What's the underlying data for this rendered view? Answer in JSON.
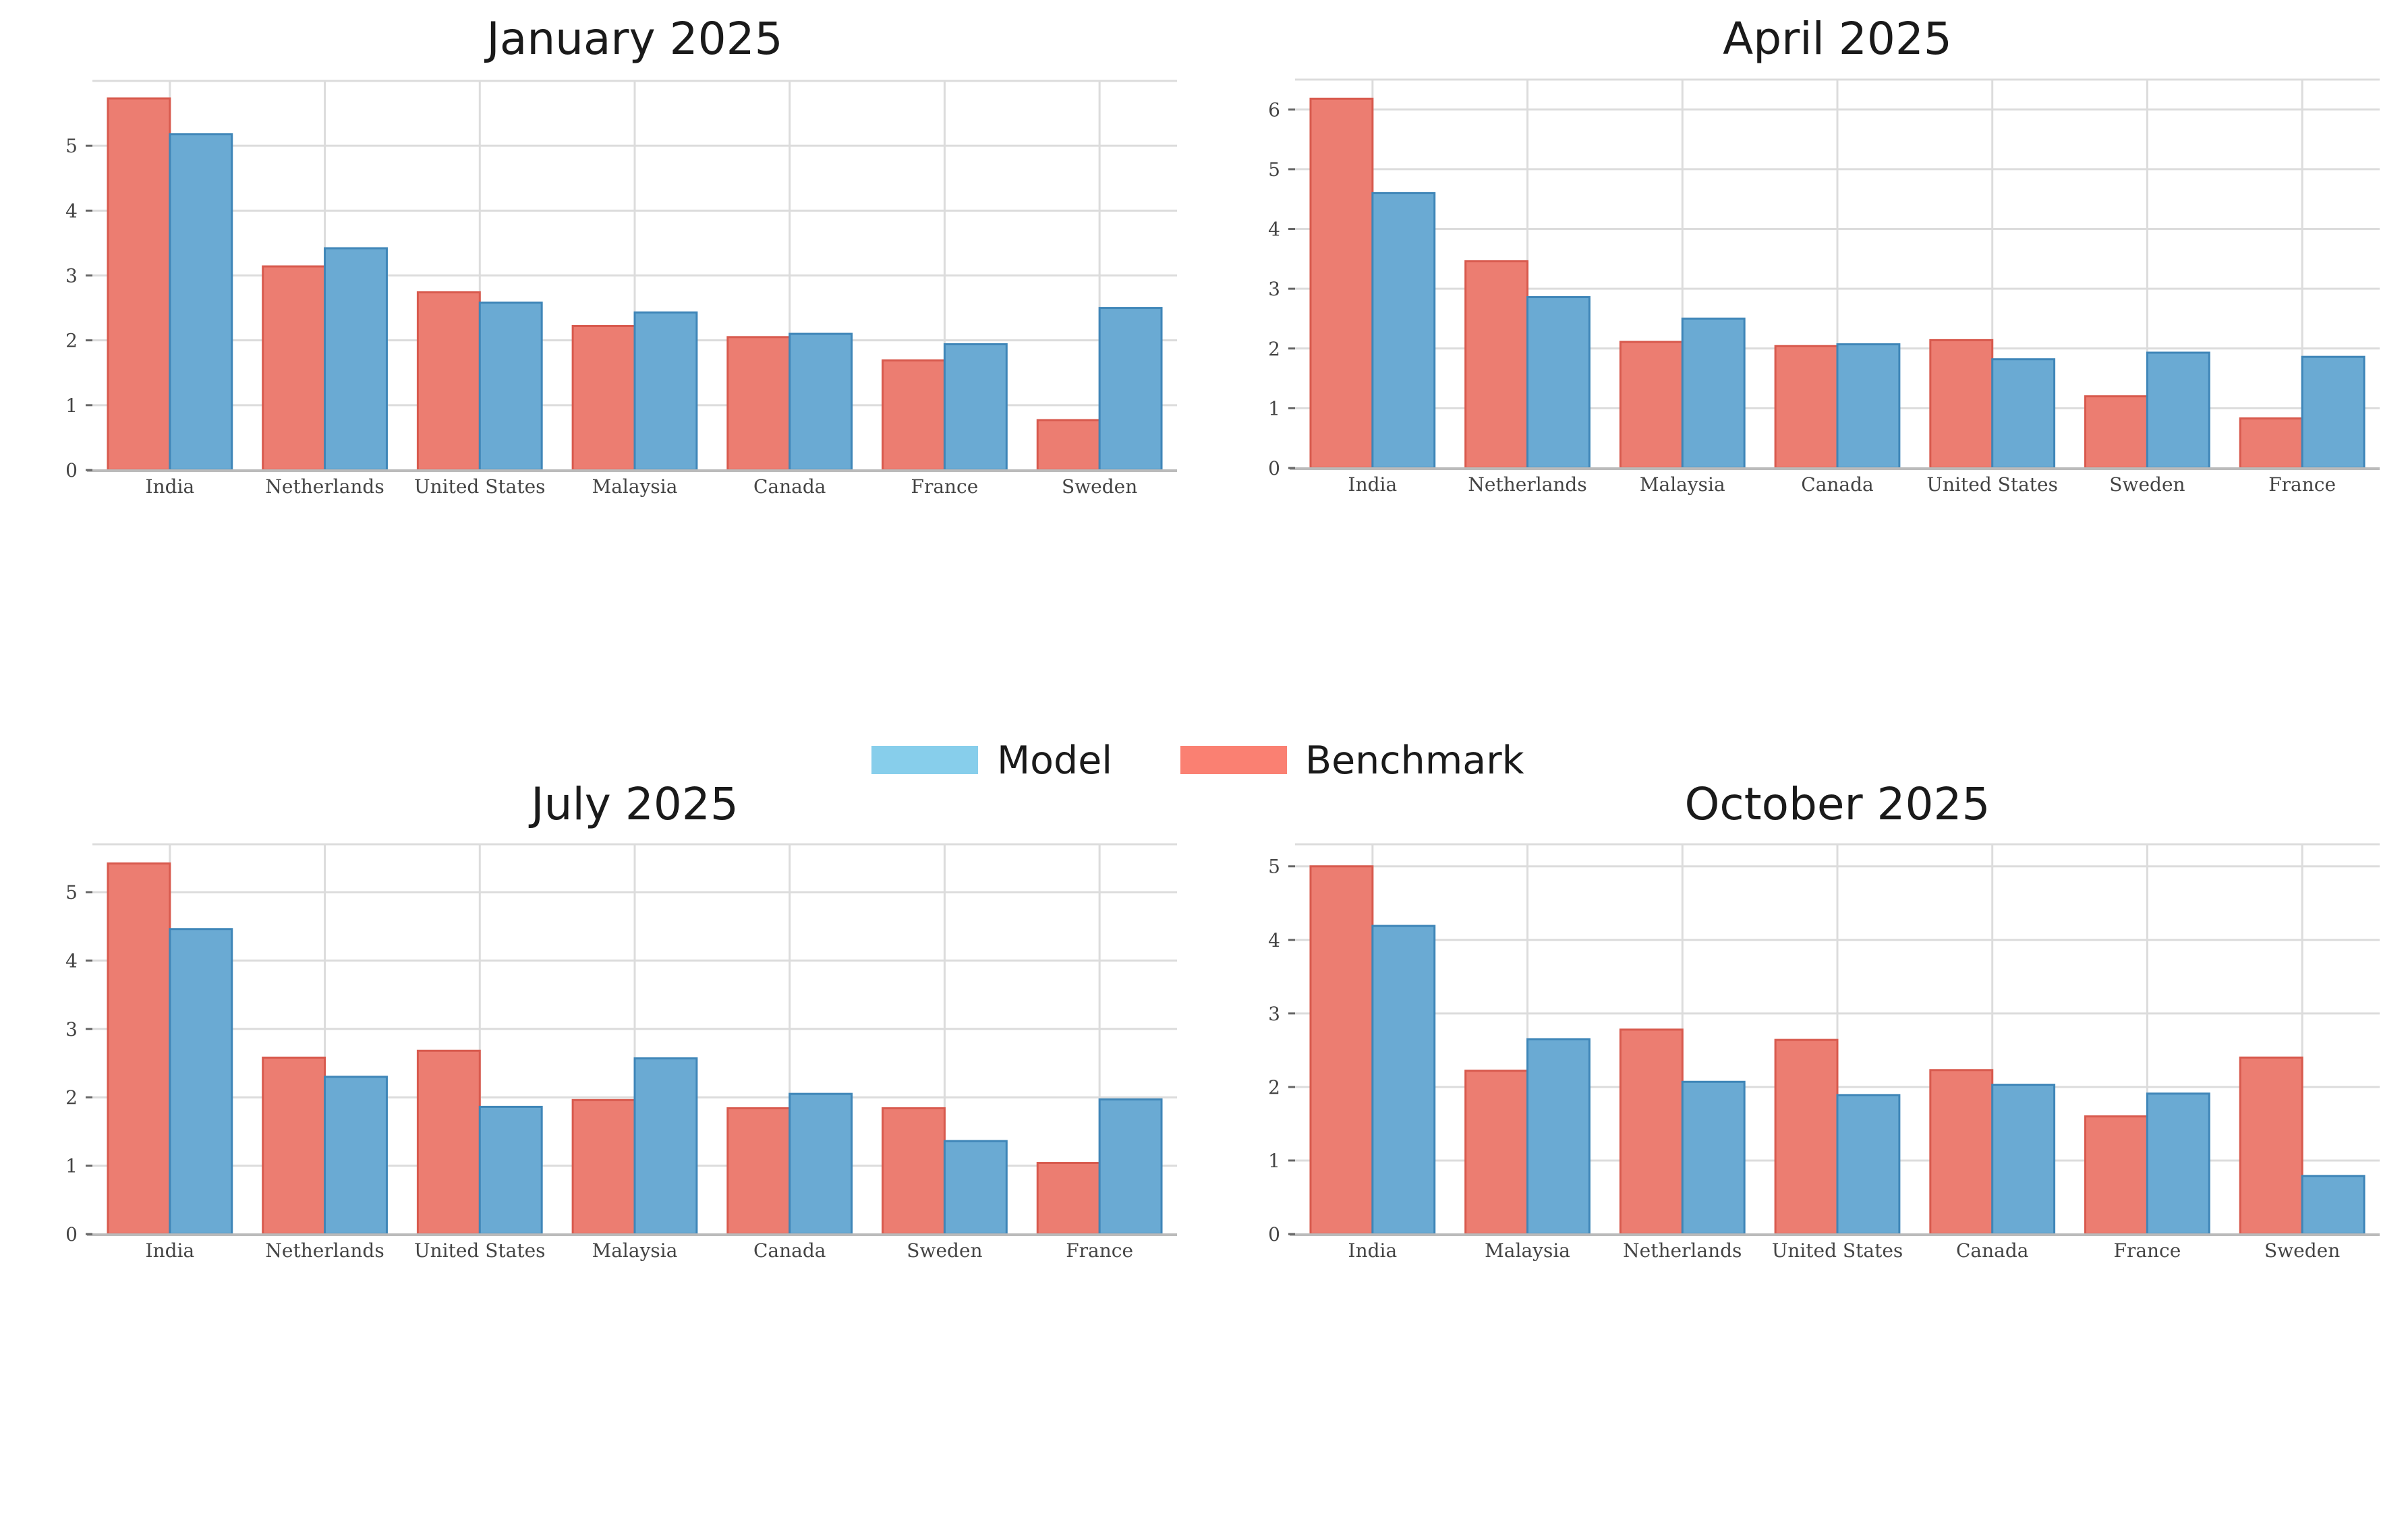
{
  "colors": {
    "model": "#6aaad3",
    "model_edge": "#3f86b8",
    "benchmark": "#ec7d71",
    "benchmark_edge": "#d85a4e",
    "grid": "#dcdcdc",
    "axis": "#bbbbbb",
    "legend_model": "#87ceeb",
    "legend_benchmark": "#fa8072"
  },
  "legend": {
    "placement": "center",
    "items": [
      {
        "label": "Model",
        "color": "#87ceeb"
      },
      {
        "label": "Benchmark",
        "color": "#fa8072"
      }
    ]
  },
  "chart_data": [
    {
      "type": "bar",
      "title": "January 2025",
      "categories": [
        "India",
        "Netherlands",
        "United States",
        "Malaysia",
        "Canada",
        "France",
        "Sweden"
      ],
      "series": [
        {
          "name": "Benchmark",
          "values": [
            5.73,
            3.14,
            2.74,
            2.22,
            2.05,
            1.69,
            0.77
          ]
        },
        {
          "name": "Model",
          "values": [
            5.18,
            3.42,
            2.58,
            2.43,
            2.1,
            1.94,
            2.5
          ]
        }
      ],
      "ylim": [
        0,
        6
      ],
      "yticks": [
        0,
        1,
        2,
        3,
        4,
        5
      ],
      "grid": true
    },
    {
      "type": "bar",
      "title": "April 2025",
      "categories": [
        "India",
        "Netherlands",
        "Malaysia",
        "Canada",
        "United States",
        "Sweden",
        "France"
      ],
      "series": [
        {
          "name": "Benchmark",
          "values": [
            6.18,
            3.46,
            2.11,
            2.04,
            2.14,
            1.2,
            0.83
          ]
        },
        {
          "name": "Model",
          "values": [
            4.6,
            2.86,
            2.5,
            2.07,
            1.82,
            1.93,
            1.86
          ]
        }
      ],
      "ylim": [
        0,
        6.5
      ],
      "yticks": [
        0,
        1,
        2,
        3,
        4,
        5,
        6
      ],
      "grid": true
    },
    {
      "type": "bar",
      "title": "July 2025",
      "categories": [
        "India",
        "Netherlands",
        "United States",
        "Malaysia",
        "Canada",
        "Sweden",
        "France"
      ],
      "series": [
        {
          "name": "Benchmark",
          "values": [
            5.42,
            2.58,
            2.68,
            1.96,
            1.84,
            1.84,
            1.04
          ]
        },
        {
          "name": "Model",
          "values": [
            4.46,
            2.3,
            1.86,
            2.57,
            2.05,
            1.36,
            1.97
          ]
        }
      ],
      "ylim": [
        0,
        5.7
      ],
      "yticks": [
        0,
        1,
        2,
        3,
        4,
        5
      ],
      "grid": true
    },
    {
      "type": "bar",
      "title": "October 2025",
      "categories": [
        "India",
        "Malaysia",
        "Netherlands",
        "United States",
        "Canada",
        "France",
        "Sweden"
      ],
      "series": [
        {
          "name": "Benchmark",
          "values": [
            5.0,
            2.22,
            2.78,
            2.64,
            2.23,
            1.6,
            2.4
          ]
        },
        {
          "name": "Model",
          "values": [
            4.19,
            2.65,
            2.07,
            1.89,
            2.03,
            1.91,
            0.79
          ]
        }
      ],
      "ylim": [
        0,
        5.3
      ],
      "yticks": [
        0,
        1,
        2,
        3,
        4,
        5
      ],
      "grid": true
    }
  ]
}
